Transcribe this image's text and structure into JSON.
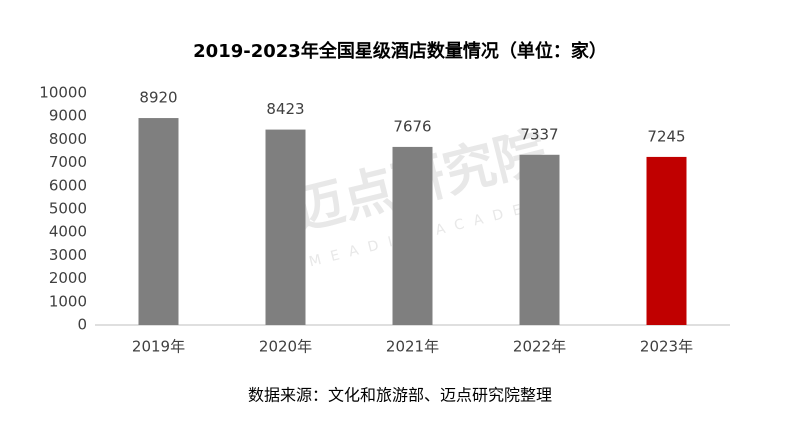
{
  "chart_data": {
    "type": "bar",
    "title": "2019-2023年全国星级酒店数量情况（单位：家）",
    "categories": [
      "2019年",
      "2020年",
      "2021年",
      "2022年",
      "2023年"
    ],
    "values": [
      8920,
      8423,
      7676,
      7337,
      7245
    ],
    "colors": [
      "#7f7f7f",
      "#7f7f7f",
      "#7f7f7f",
      "#7f7f7f",
      "#c00000"
    ],
    "ylim": [
      0,
      10000
    ],
    "yticks": [
      0,
      1000,
      2000,
      3000,
      4000,
      5000,
      6000,
      7000,
      8000,
      9000,
      10000
    ],
    "grid": false,
    "source": "数据来源：文化和旅游部、迈点研究院整理",
    "watermark": "迈点研究院",
    "watermark_sub": "MEADIN ACADEMY"
  }
}
